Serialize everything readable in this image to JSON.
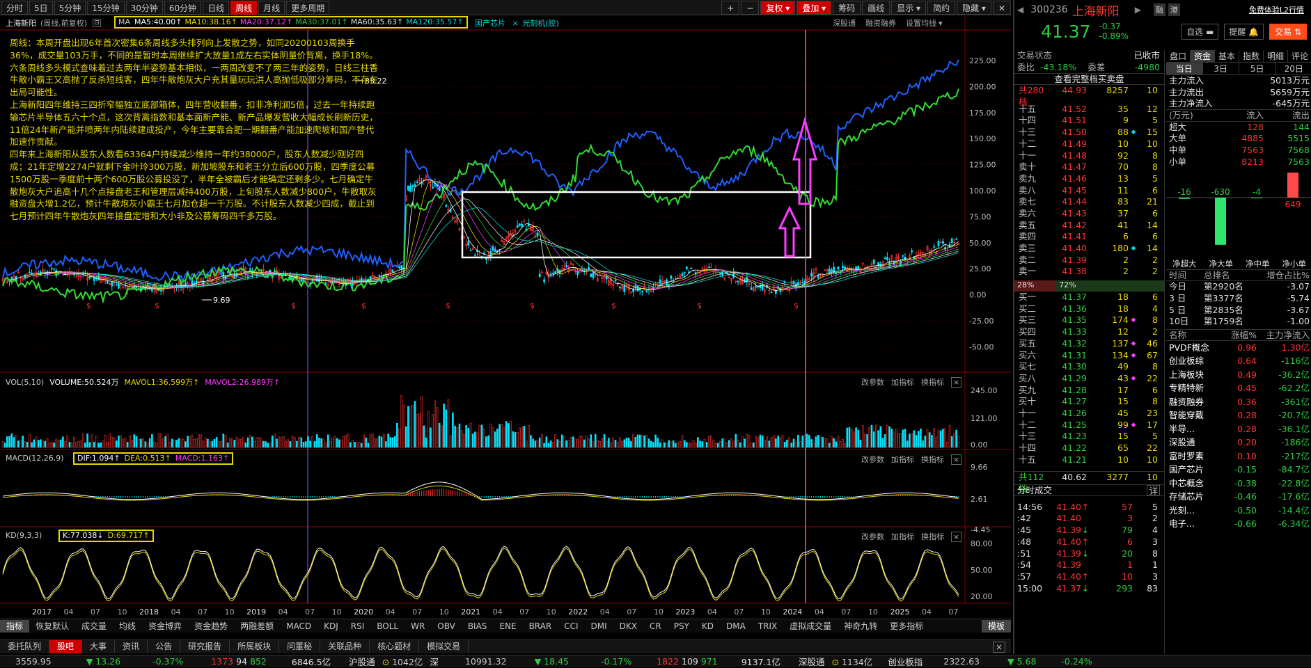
{
  "toolbar": {
    "periods": [
      "分时",
      "5日",
      "5分钟",
      "15分钟",
      "30分钟",
      "60分钟",
      "日线",
      "周线",
      "月线",
      "更多周期"
    ],
    "selected_period": "周线",
    "tools": [
      "复权",
      "叠加",
      "筹码",
      "画线",
      "显示",
      "简约",
      "隐藏"
    ]
  },
  "chart": {
    "stock_header": "上海新阳",
    "header_sub": "(周线,前复权)",
    "ma_legend": {
      "label": "MA",
      "ma5": "MA5:40.00",
      "ma10": "MA10:38.16",
      "ma20": "MA20:37.12",
      "ma30": "MA30:37.01",
      "ma60": "MA60:35.63",
      "ma120": "MA120:35.57"
    },
    "tag1": "国产芯片",
    "tag2": "光刻机(胶)",
    "right_links": [
      "深股通",
      "融资融券",
      "设置均线"
    ],
    "y_ticks": [
      "225.00",
      "200.00",
      "175.00",
      "150.00",
      "125.00",
      "100.00",
      "75.00",
      "50.00",
      "25.00",
      "0.00",
      "-25.00",
      "-50.00"
    ],
    "high_label": "83.22",
    "low_label": "9.69",
    "overlay_text": "周线：本周开盘出现6年首次密集6条周线多头排列向上发散之势，如同20200103周换手36%，成交量103万手，不同的是暂时本周继续扩大放量1成左右实体阴量价背离，换手18%。\n六条周线多头模式查味着过去两年半姿势基本相似，一两周改变不了两三年的姿势，日线三柱香牛散小霸王又高抛了反杀短线客，四年牛散炮灰大户充其量玩玩洪人高抛低吸部分筹码，不存在出局可能性。\n上海新阳四年维持三四折窄幅独立底部箱体，四年营收翻番，扣非净利润5倍，过去一年持续跑输芯片半导体五六十个点，这次背离指数和基本面新产能、新产品爆发营收大幅成长刷新历史，11倍24年新产能并喷两年内陆续建成投产，今年主要靠合肥一期翻番产能加速爬坡和国产替代加速作贡献。\n四年来上海新阳从股东人数看63364户持续减少维持一年约38000户，股东人数减少刚好四成；21年定增2274户就剩下金叶玲300万股，新加坡股东和老王分立后600万股，四季度公募1500万股一季度前十两个600万股公募投没了，半年全被霸后才能确定还剩多少。七月确定牛散炮灰大户追高十几个点接盘老王和管理层减持400万股，上旬股东人数减少800户，牛散取灰融资盘大增1.2亿，预计牛散炮灰小霸王七月加仓超一千万股。不计股东人数减少四成，截止到七月预计四年牛散炮灰四年接盘定增和大小非及公募筹码四千多万股。"
  },
  "vol": {
    "label": "VOL(5,10)",
    "volume": "VOLUME:50.524万",
    "mavol1": "MAVOL1:36.599万",
    "mavol2": "MAVOL2:26.989万",
    "ticks": [
      "245.00",
      "121.00",
      "0.00"
    ]
  },
  "macd": {
    "label": "MACD(12,26,9)",
    "dif": "DIF:1.094",
    "dea": "DEA:0.513",
    "macd": "MACD:1.163",
    "ticks": [
      "9.66",
      "2.61",
      "-4.45"
    ]
  },
  "kd": {
    "label": "KD(9,3,3)",
    "k": "K:77.038",
    "d": "D:69.717",
    "ticks": [
      "80.00",
      "50.00",
      "20.00"
    ]
  },
  "panel_links": [
    "改参数",
    "加指标",
    "换指标"
  ],
  "x_axis": [
    "2017",
    "04",
    "07",
    "10",
    "2018",
    "04",
    "07",
    "10",
    "2019",
    "04",
    "07",
    "10",
    "2020",
    "04",
    "07",
    "10",
    "2021",
    "04",
    "07",
    "10",
    "2022",
    "04",
    "07",
    "10",
    "2023",
    "04",
    "07",
    "10",
    "2024",
    "04",
    "07",
    "10",
    "2025",
    "04",
    "07"
  ],
  "indicator_tabs": [
    "指标",
    "恢复默认",
    "成交量",
    "均线",
    "资金博弈",
    "资金趋势",
    "两融差额",
    "MACD",
    "KDJ",
    "RSI",
    "BOLL",
    "WR",
    "OBV",
    "BIAS",
    "ENE",
    "BRAR",
    "CCI",
    "DMI",
    "DKX",
    "CR",
    "PSY",
    "KD",
    "DMA",
    "TRIX",
    "虚拟成交量",
    "神奇九转",
    "更多指标",
    "模板"
  ],
  "bottom_tabs": [
    "委托队列",
    "股吧",
    "大事",
    "资讯",
    "公告",
    "研究报告",
    "所属板块",
    "问董秘",
    "关联品种",
    "核心题材",
    "模拟交易"
  ],
  "status": {
    "sh_index": "3559.95",
    "sh_chg": "13.26",
    "sh_pct": "-0.37%",
    "sh_up": "1373",
    "sh_flat": "94",
    "sh_down": "852",
    "sh_amt": "6846.5亿",
    "hgt_label": "沪股通",
    "hgt_val": "1042亿",
    "sz_label": "深",
    "sz_index": "10991.32",
    "sz_chg": "18.45",
    "sz_pct": "-0.17%",
    "sz_up": "1822",
    "sz_flat": "109",
    "sz_down": "971",
    "sz_amt": "9137.1亿",
    "sgt_label": "深股通",
    "sgt_val": "1134亿",
    "cy_label": "创业板指",
    "cy_index": "2322.63",
    "cy_chg": "5.68",
    "cy_pct": "-0.24%"
  },
  "quote": {
    "code": "300236",
    "name": "上海新阳",
    "price": "41.37",
    "chg": "-0.37",
    "pct": "-0.89%",
    "badges": [
      "融",
      "港"
    ],
    "l2": "免费体验L2行情",
    "btn_zixuan": "自选",
    "btn_tixing": "提醒",
    "btn_jiaoyi": "交易"
  },
  "orderbook": {
    "status_label": "交易状态",
    "status": "已收市",
    "weibi_label": "委比",
    "weibi": "-43.18%",
    "weicha_label": "委差",
    "weicha": "-4980",
    "view_all": "查看完整档买卖盘",
    "sell_total_label": "共280档",
    "sell_total_price": "44.93",
    "sell_total_vol": "8257",
    "sell_total_cnt": "10",
    "asks": [
      {
        "l": "十五",
        "p": "41.52",
        "v": "35",
        "m": "",
        "c": "12"
      },
      {
        "l": "十四",
        "p": "41.51",
        "v": "9",
        "m": "",
        "c": "5"
      },
      {
        "l": "十三",
        "p": "41.50",
        "v": "88",
        "m": "◆",
        "c": "15"
      },
      {
        "l": "十二",
        "p": "41.49",
        "v": "10",
        "m": "",
        "c": "10"
      },
      {
        "l": "十一",
        "p": "41.48",
        "v": "92",
        "m": "",
        "c": "8"
      },
      {
        "l": "卖十",
        "p": "41.47",
        "v": "70",
        "m": "",
        "c": "8"
      },
      {
        "l": "卖九",
        "p": "41.46",
        "v": "13",
        "m": "",
        "c": "5"
      },
      {
        "l": "卖八",
        "p": "41.45",
        "v": "11",
        "m": "",
        "c": "6"
      },
      {
        "l": "卖七",
        "p": "41.44",
        "v": "83",
        "m": "",
        "c": "21"
      },
      {
        "l": "卖六",
        "p": "41.43",
        "v": "37",
        "m": "",
        "c": "6"
      },
      {
        "l": "卖五",
        "p": "41.42",
        "v": "41",
        "m": "",
        "c": "14"
      },
      {
        "l": "卖四",
        "p": "41.41",
        "v": "6",
        "m": "",
        "c": "6"
      },
      {
        "l": "卖三",
        "p": "41.40",
        "v": "180",
        "m": "◆",
        "c": "14"
      },
      {
        "l": "卖二",
        "p": "41.39",
        "v": "2",
        "m": "",
        "c": "2"
      },
      {
        "l": "卖一",
        "p": "41.38",
        "v": "2",
        "m": "",
        "c": "2"
      }
    ],
    "bar_left": "28%",
    "bar_right": "72%",
    "bids": [
      {
        "l": "买一",
        "p": "41.37",
        "v": "18",
        "m": "",
        "c": "6"
      },
      {
        "l": "买二",
        "p": "41.36",
        "v": "18",
        "m": "",
        "c": "4"
      },
      {
        "l": "买三",
        "p": "41.35",
        "v": "174",
        "m": "◆",
        "c": "8"
      },
      {
        "l": "买四",
        "p": "41.33",
        "v": "12",
        "m": "",
        "c": "2"
      },
      {
        "l": "买五",
        "p": "41.32",
        "v": "137",
        "m": "◆",
        "c": "46"
      },
      {
        "l": "买六",
        "p": "41.31",
        "v": "134",
        "m": "◆",
        "c": "67"
      },
      {
        "l": "买七",
        "p": "41.30",
        "v": "49",
        "m": "",
        "c": "8"
      },
      {
        "l": "买八",
        "p": "41.29",
        "v": "43",
        "m": "◆",
        "c": "22"
      },
      {
        "l": "买九",
        "p": "41.28",
        "v": "17",
        "m": "",
        "c": "6"
      },
      {
        "l": "买十",
        "p": "41.27",
        "v": "15",
        "m": "",
        "c": "8"
      },
      {
        "l": "十一",
        "p": "41.26",
        "v": "45",
        "m": "",
        "c": "23"
      },
      {
        "l": "十二",
        "p": "41.25",
        "v": "99",
        "m": "◆",
        "c": "17"
      },
      {
        "l": "十三",
        "p": "41.23",
        "v": "15",
        "m": "",
        "c": "5"
      },
      {
        "l": "十四",
        "p": "41.22",
        "v": "65",
        "m": "",
        "c": "22"
      },
      {
        "l": "十五",
        "p": "41.21",
        "v": "10",
        "m": "",
        "c": "10"
      }
    ],
    "buy_total_label": "共112档",
    "buy_total_price": "40.62",
    "buy_total_vol": "3277",
    "buy_total_cnt": "10"
  },
  "ticks": {
    "label": "分时成交",
    "detail": "详",
    "rows": [
      {
        "t": "14:56",
        "p": "41.40",
        "d": "↑",
        "v": "57",
        "c": "5"
      },
      {
        "t": ":42",
        "p": "41.40",
        "d": "",
        "v": "3",
        "c": "2"
      },
      {
        "t": ":45",
        "p": "41.39",
        "d": "↓",
        "v": "79",
        "c": "4"
      },
      {
        "t": ":48",
        "p": "41.40",
        "d": "↑",
        "v": "6",
        "c": "3"
      },
      {
        "t": ":51",
        "p": "41.39",
        "d": "↓",
        "v": "20",
        "c": "8"
      },
      {
        "t": ":54",
        "p": "41.39",
        "d": "",
        "v": "1",
        "c": "1"
      },
      {
        "t": ":57",
        "p": "41.40",
        "d": "↑",
        "v": "10",
        "c": "3"
      },
      {
        "t": "15:00",
        "p": "41.37",
        "d": "↓",
        "v": "293",
        "c": "83"
      }
    ]
  },
  "funds": {
    "tabs": [
      "盘口",
      "资金",
      "基本",
      "指数",
      "明细",
      "评论"
    ],
    "sub_tabs": [
      "当日",
      "3日",
      "5日",
      "20日"
    ],
    "main_in_label": "主力流入",
    "main_in": "5013万元",
    "main_out_label": "主力流出",
    "main_out": "5659万元",
    "main_net_label": "主力净流入",
    "main_net": "-645万元",
    "flow_header": [
      "(万元)",
      "流入",
      "流出"
    ],
    "flows": [
      {
        "n": "超大",
        "i": "128",
        "o": "144"
      },
      {
        "n": "大单",
        "i": "4885",
        "o": "5515"
      },
      {
        "n": "中单",
        "i": "7563",
        "o": "7568"
      },
      {
        "n": "小单",
        "i": "8213",
        "o": "7563"
      }
    ],
    "bars": [
      {
        "n": "净超大",
        "v": -16
      },
      {
        "n": "净大单",
        "v": -630
      },
      {
        "n": "净中单",
        "v": -4
      },
      {
        "n": "净小单",
        "v": 649
      }
    ],
    "rank_header": [
      "时间",
      "总排名",
      "增仓占比%"
    ],
    "ranks": [
      {
        "t": "今日",
        "r": "第2920名",
        "p": "-3.07"
      },
      {
        "t": "3 日",
        "r": "第3377名",
        "p": "-5.74"
      },
      {
        "t": "5 日",
        "r": "第2835名",
        "p": "-3.67"
      },
      {
        "t": "10日",
        "r": "第1759名",
        "p": "-1.00"
      }
    ],
    "sector_header": [
      "名称",
      "涨幅%",
      "主力净流入"
    ],
    "sectors": [
      {
        "n": "PVDF概念",
        "p": "0.96",
        "f": "1.30亿"
      },
      {
        "n": "创业板综",
        "p": "0.64",
        "f": "-116亿"
      },
      {
        "n": "上海板块",
        "p": "0.49",
        "f": "-36.2亿"
      },
      {
        "n": "专精特新",
        "p": "0.45",
        "f": "-62.2亿"
      },
      {
        "n": "融资融券",
        "p": "0.36",
        "f": "-361亿"
      },
      {
        "n": "智能穿戴",
        "p": "0.28",
        "f": "-20.7亿"
      },
      {
        "n": "半导...",
        "p": "0.28",
        "f": "-36.1亿"
      },
      {
        "n": "深股通",
        "p": "0.20",
        "f": "-186亿"
      },
      {
        "n": "富时罗素",
        "p": "0.10",
        "f": "-217亿"
      },
      {
        "n": "国产芯片",
        "p": "-0.15",
        "f": "-84.7亿"
      },
      {
        "n": "中芯概念",
        "p": "-0.38",
        "f": "-22.8亿"
      },
      {
        "n": "存储芯片",
        "p": "-0.46",
        "f": "-17.6亿"
      },
      {
        "n": "光刻...",
        "p": "-0.50",
        "f": "-14.4亿"
      },
      {
        "n": "电子...",
        "p": "-0.66",
        "f": "-6.34亿"
      }
    ]
  }
}
